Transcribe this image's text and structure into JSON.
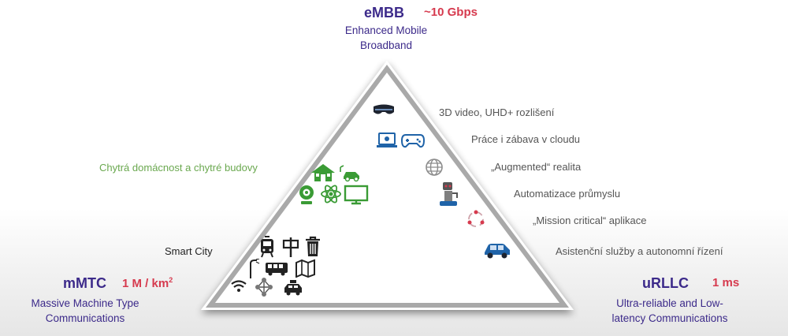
{
  "embb": {
    "title": "eMBB",
    "speed": "~10 Gbps",
    "description_line1": "Enhanced Mobile",
    "description_line2": "Broadband"
  },
  "mmtc": {
    "title": "mMTC",
    "density_value": "1 M / km",
    "density_exp": "2",
    "description_line1": "Massive Machine Type",
    "description_line2": "Communications"
  },
  "urllc": {
    "title": "uRLLC",
    "latency": "1 ms",
    "description_line1": "Ultra-reliable and Low-",
    "description_line2": "latency Communications"
  },
  "use_cases": [
    "3D video, UHD+ rozlišení",
    "Práce i zábava v cloudu",
    "„Augmented“ realita",
    "Automatizace průmyslu",
    "„Mission critical“ aplikace",
    "Asistenční služby a autonomní řízení"
  ],
  "smart_home_label": "Chytrá domácnost a chytré budovy",
  "smart_city_label": "Smart City",
  "colors": {
    "purple": "#3c2a8a",
    "red": "#d63a4e",
    "green": "#3a9b35",
    "blue": "#1f63a8",
    "dark": "#222222"
  },
  "icons": {
    "embb": [
      "vr-headset-icon",
      "laptop-icon",
      "gamepad-icon",
      "globe-icon",
      "robot-arm-icon",
      "mission-critical-cycle-icon",
      "car-icon"
    ],
    "smart_home": [
      "house-icon",
      "electric-car-icon",
      "webcam-icon",
      "atom-icon",
      "tv-icon"
    ],
    "smart_city": [
      "tram-icon",
      "signpost-icon",
      "trash-bin-icon",
      "street-lamp-icon",
      "bus-icon",
      "map-icon",
      "wifi-icon",
      "network-icon",
      "taxi-icon"
    ]
  }
}
